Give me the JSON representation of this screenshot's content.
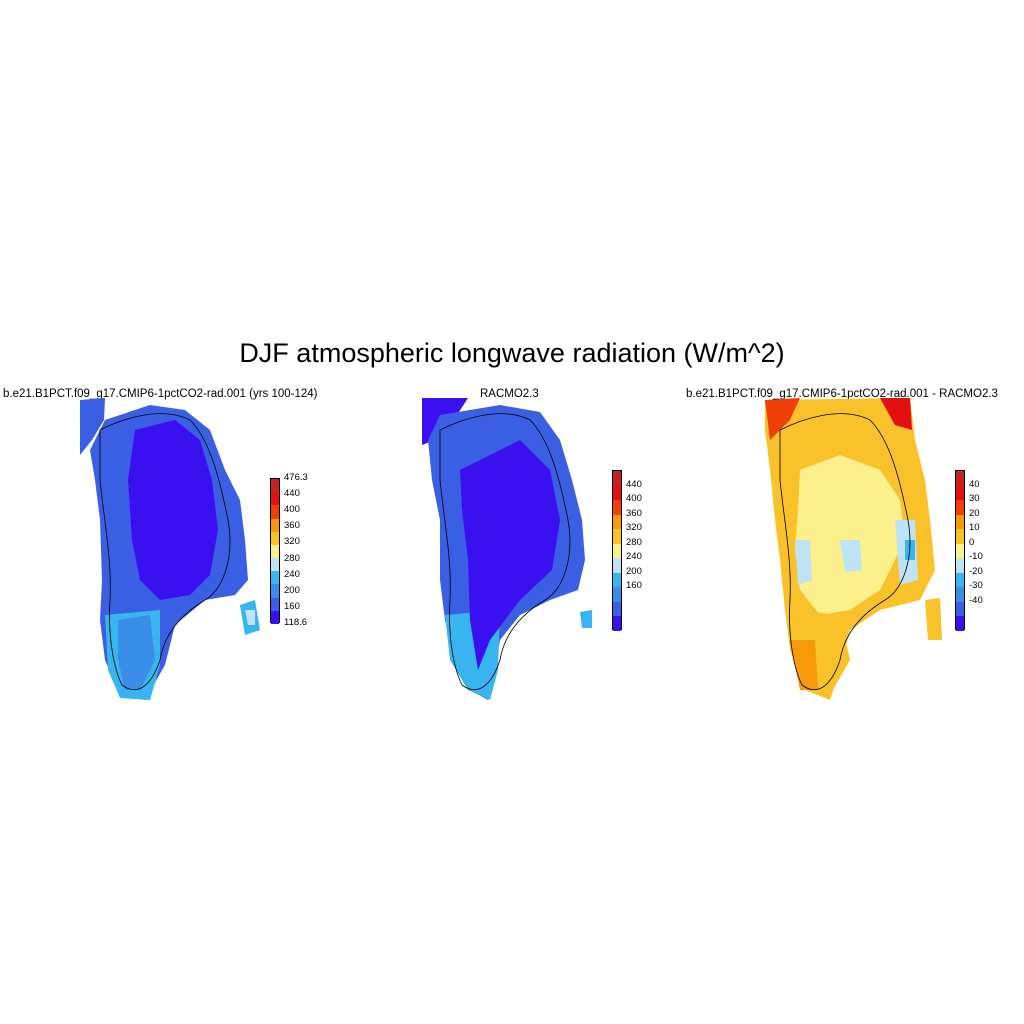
{
  "title": "DJF atmospheric longwave radiation (W/m^2)",
  "panels": [
    {
      "title": "b.e21.B1PCT.f09_g17.CMIP6-1pctCO2-rad.001 (yrs 100-124)",
      "colorbar": {
        "colors": [
          "#3a10f0",
          "#3a5fe3",
          "#3a8ee8",
          "#38b4ee",
          "#bde3f5",
          "#fbf08c",
          "#f9c12a",
          "#f79a0a",
          "#f0400a",
          "#e21010",
          "#c42323"
        ],
        "labels": [
          "476.3",
          "440",
          "400",
          "360",
          "320",
          "280",
          "240",
          "200",
          "160",
          "118.6"
        ]
      }
    },
    {
      "title": "RACMO2.3",
      "colorbar": {
        "colors": [
          "#3a10f0",
          "#3a5fe3",
          "#3a8ee8",
          "#38b4ee",
          "#bde3f5",
          "#fbf08c",
          "#f9c12a",
          "#f79a0a",
          "#f0400a",
          "#e21010",
          "#c42323"
        ],
        "labels": [
          "440",
          "400",
          "360",
          "320",
          "280",
          "240",
          "200",
          "160"
        ]
      }
    },
    {
      "title": "b.e21.B1PCT.f09_g17.CMIP6-1pctCO2-rad.001 - RACMO2.3",
      "colorbar": {
        "colors": [
          "#3a10f0",
          "#3a5fe3",
          "#3a8ee8",
          "#38b4ee",
          "#bde3f5",
          "#fbf08c",
          "#f9c12a",
          "#f79a0a",
          "#f0400a",
          "#e21010",
          "#c42323"
        ],
        "labels": [
          "40",
          "30",
          "20",
          "10",
          "0",
          "-10",
          "-20",
          "-30",
          "-40"
        ]
      }
    }
  ]
}
